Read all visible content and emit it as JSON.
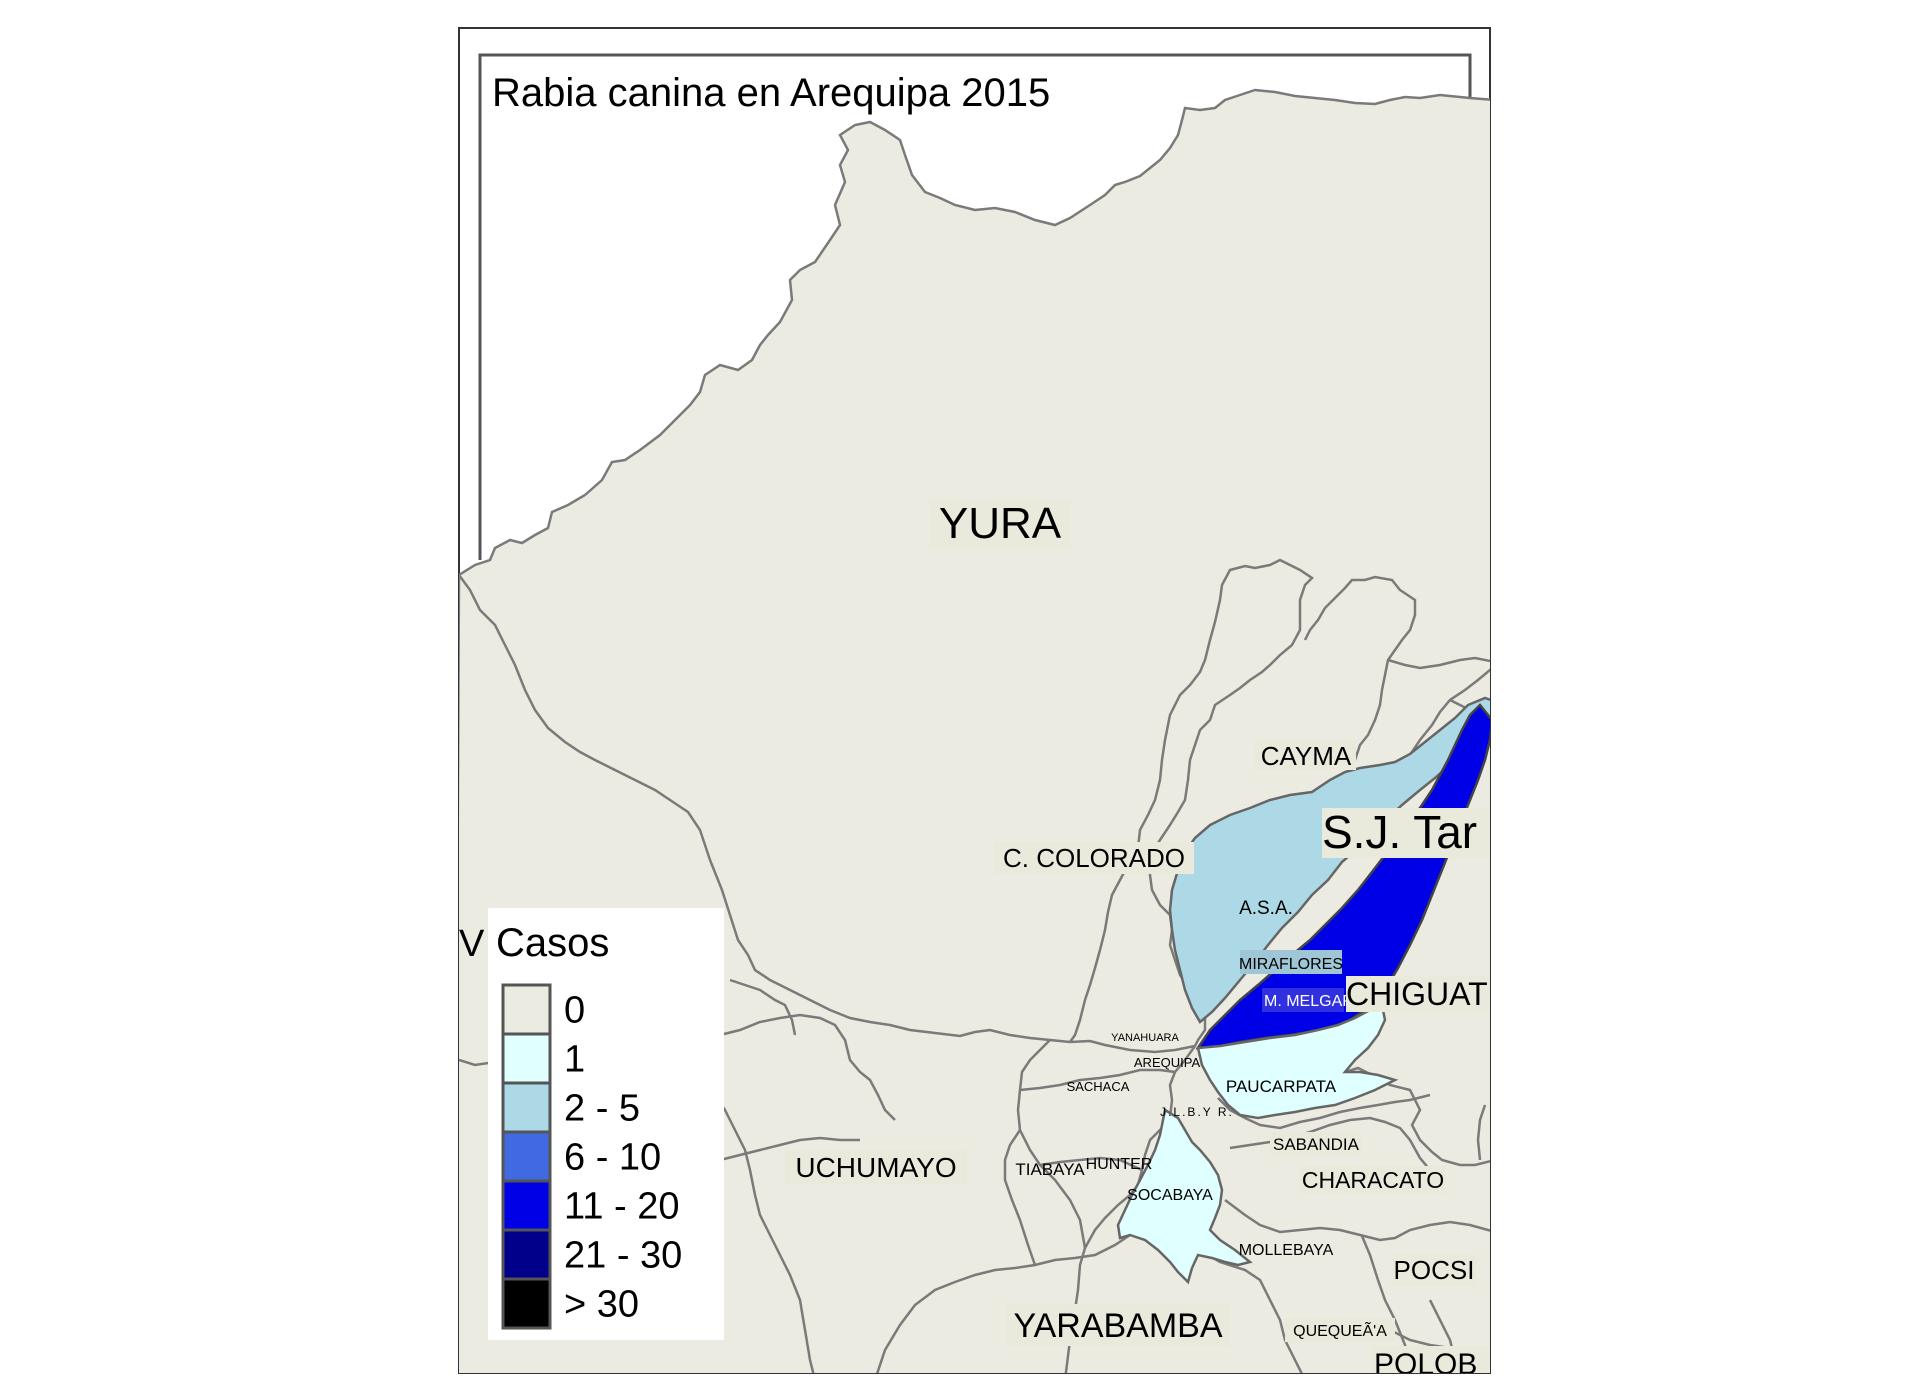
{
  "title": "Rabia canina en Arequipa 2015",
  "colors": {
    "background": "#ffffff",
    "land": "#ecebe1",
    "boundary": "#7a7a7a",
    "frame": "#333333"
  },
  "districts": [
    {
      "name": "YURA",
      "cases_class": "0",
      "label_size": "xl"
    },
    {
      "name": "CAYMA",
      "cases_class": "0",
      "label_size": "m"
    },
    {
      "name": "S.J. Tar",
      "cases_class": "0",
      "label_size": "xl"
    },
    {
      "name": "C. COLORADO",
      "cases_class": "0",
      "label_size": "m"
    },
    {
      "name": "A.S.A.",
      "cases_class": "2 - 5",
      "label_size": "s"
    },
    {
      "name": "MIRAFLORES",
      "cases_class": "2 - 5",
      "label_size": "s"
    },
    {
      "name": "M. MELGAR",
      "cases_class": "11 - 20",
      "label_size": "s"
    },
    {
      "name": "CHIGUAT",
      "cases_class": "0",
      "label_size": "l"
    },
    {
      "name": "YANAHUARA",
      "cases_class": "0",
      "label_size": "xs"
    },
    {
      "name": "AREQUIPA",
      "cases_class": "0",
      "label_size": "xs"
    },
    {
      "name": "SACHACA",
      "cases_class": "0",
      "label_size": "xs"
    },
    {
      "name": "PAUCARPATA",
      "cases_class": "1",
      "label_size": "s"
    },
    {
      "name": "J.L.B.Y R.",
      "cases_class": "0",
      "label_size": "xs"
    },
    {
      "name": "SABANDIA",
      "cases_class": "0",
      "label_size": "s"
    },
    {
      "name": "UCHUMAYO",
      "cases_class": "0",
      "label_size": "m"
    },
    {
      "name": "TIABAYA",
      "cases_class": "0",
      "label_size": "s"
    },
    {
      "name": "HUNTER",
      "cases_class": "0",
      "label_size": "s"
    },
    {
      "name": "SOCABAYA",
      "cases_class": "1",
      "label_size": "s"
    },
    {
      "name": "CHARACATO",
      "cases_class": "0",
      "label_size": "m"
    },
    {
      "name": "MOLLEBAYA",
      "cases_class": "0",
      "label_size": "s"
    },
    {
      "name": "POCSI",
      "cases_class": "0",
      "label_size": "m"
    },
    {
      "name": "YARABAMBA",
      "cases_class": "0",
      "label_size": "l"
    },
    {
      "name": "QUEQUEÃ'A",
      "cases_class": "0",
      "label_size": "s"
    },
    {
      "name": "POLOB",
      "cases_class": "0",
      "label_size": "l"
    },
    {
      "name": "V",
      "cases_class": "0",
      "label_size": "l"
    }
  ],
  "legend": {
    "title": "Casos",
    "items": [
      {
        "label": "0",
        "color": "#ecebe1"
      },
      {
        "label": "1",
        "color": "#e0ffff"
      },
      {
        "label": "2 - 5",
        "color": "#add8e6"
      },
      {
        "label": "6 - 10",
        "color": "#4169e1"
      },
      {
        "label": "11 - 20",
        "color": "#0000e6"
      },
      {
        "label": "21 - 30",
        "color": "#00008b"
      },
      {
        "label": "> 30",
        "color": "#000000"
      }
    ]
  }
}
